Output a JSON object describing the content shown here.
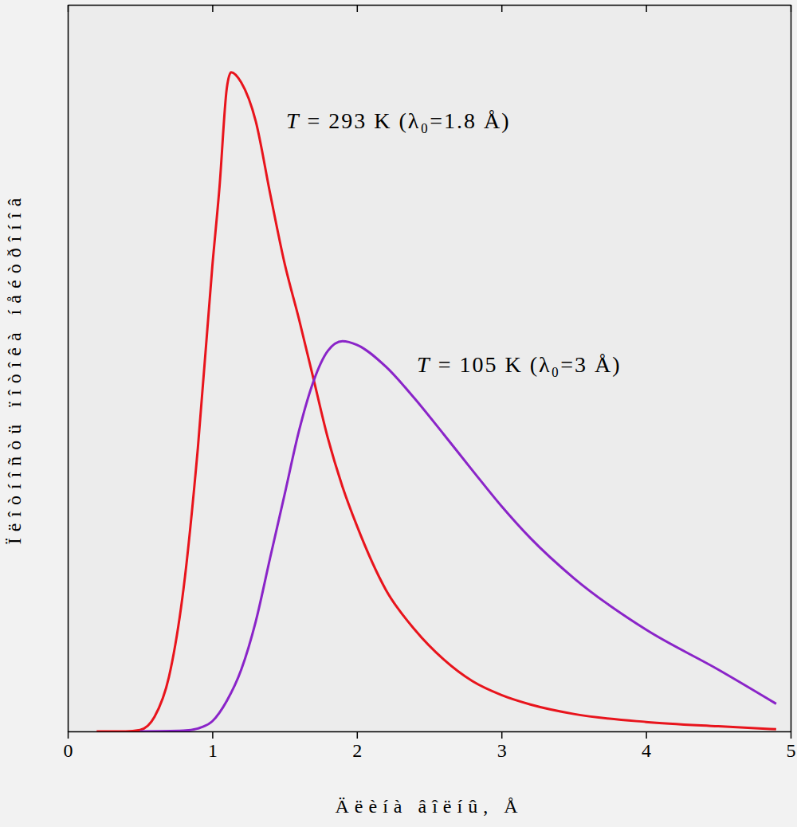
{
  "chart_data": {
    "type": "line",
    "x_label": "Äëèíà âîëíû, Å",
    "y_label": "Ïëîòíîñòü ïîòîêà íåéòðîíîâ",
    "annotations": [
      "T = 293 K (λ₀=1.8 Å)",
      "T = 105 K (λ₀=3 Å)"
    ],
    "xlim": [
      0,
      5
    ],
    "xticks": [
      0,
      1,
      2,
      3,
      4,
      5
    ],
    "ylim": [
      0,
      100
    ],
    "tick_labels": "x",
    "grid": false,
    "series": [
      {
        "color": "#e8141c",
        "x": [
          0.2,
          0.4,
          0.5,
          0.6,
          0.7,
          0.8,
          0.9,
          1.0,
          1.05,
          1.1,
          1.13,
          1.2,
          1.3,
          1.4,
          1.5,
          1.6,
          1.7,
          1.8,
          1.9,
          2.0,
          2.2,
          2.4,
          2.6,
          2.8,
          3.0,
          3.2,
          3.5,
          4.0,
          4.5,
          4.9
        ],
        "values": [
          0,
          0,
          0.2,
          2,
          7.5,
          19.5,
          39,
          64,
          75,
          88.5,
          90.7,
          89.3,
          84,
          74,
          64.4,
          56.7,
          48.5,
          40.3,
          33.7,
          28.3,
          19.5,
          14,
          9.9,
          6.9,
          5,
          3.7,
          2.4,
          1.3,
          0.7,
          0.3
        ]
      },
      {
        "color": "#8a24c8",
        "x": [
          0.5,
          0.8,
          0.9,
          1.0,
          1.1,
          1.2,
          1.3,
          1.4,
          1.5,
          1.6,
          1.7,
          1.8,
          1.9,
          2.0,
          2.2,
          2.4,
          2.6,
          2.8,
          3.0,
          3.2,
          3.5,
          4.0,
          4.5,
          4.9
        ],
        "values": [
          0,
          0.1,
          0.4,
          1.4,
          4.2,
          8.5,
          15.1,
          23.9,
          32.6,
          41.4,
          48.2,
          52.4,
          53.7,
          53.2,
          50.2,
          45.8,
          40.9,
          35.9,
          31,
          26.6,
          21.1,
          14,
          8.5,
          3.8
        ]
      }
    ]
  }
}
